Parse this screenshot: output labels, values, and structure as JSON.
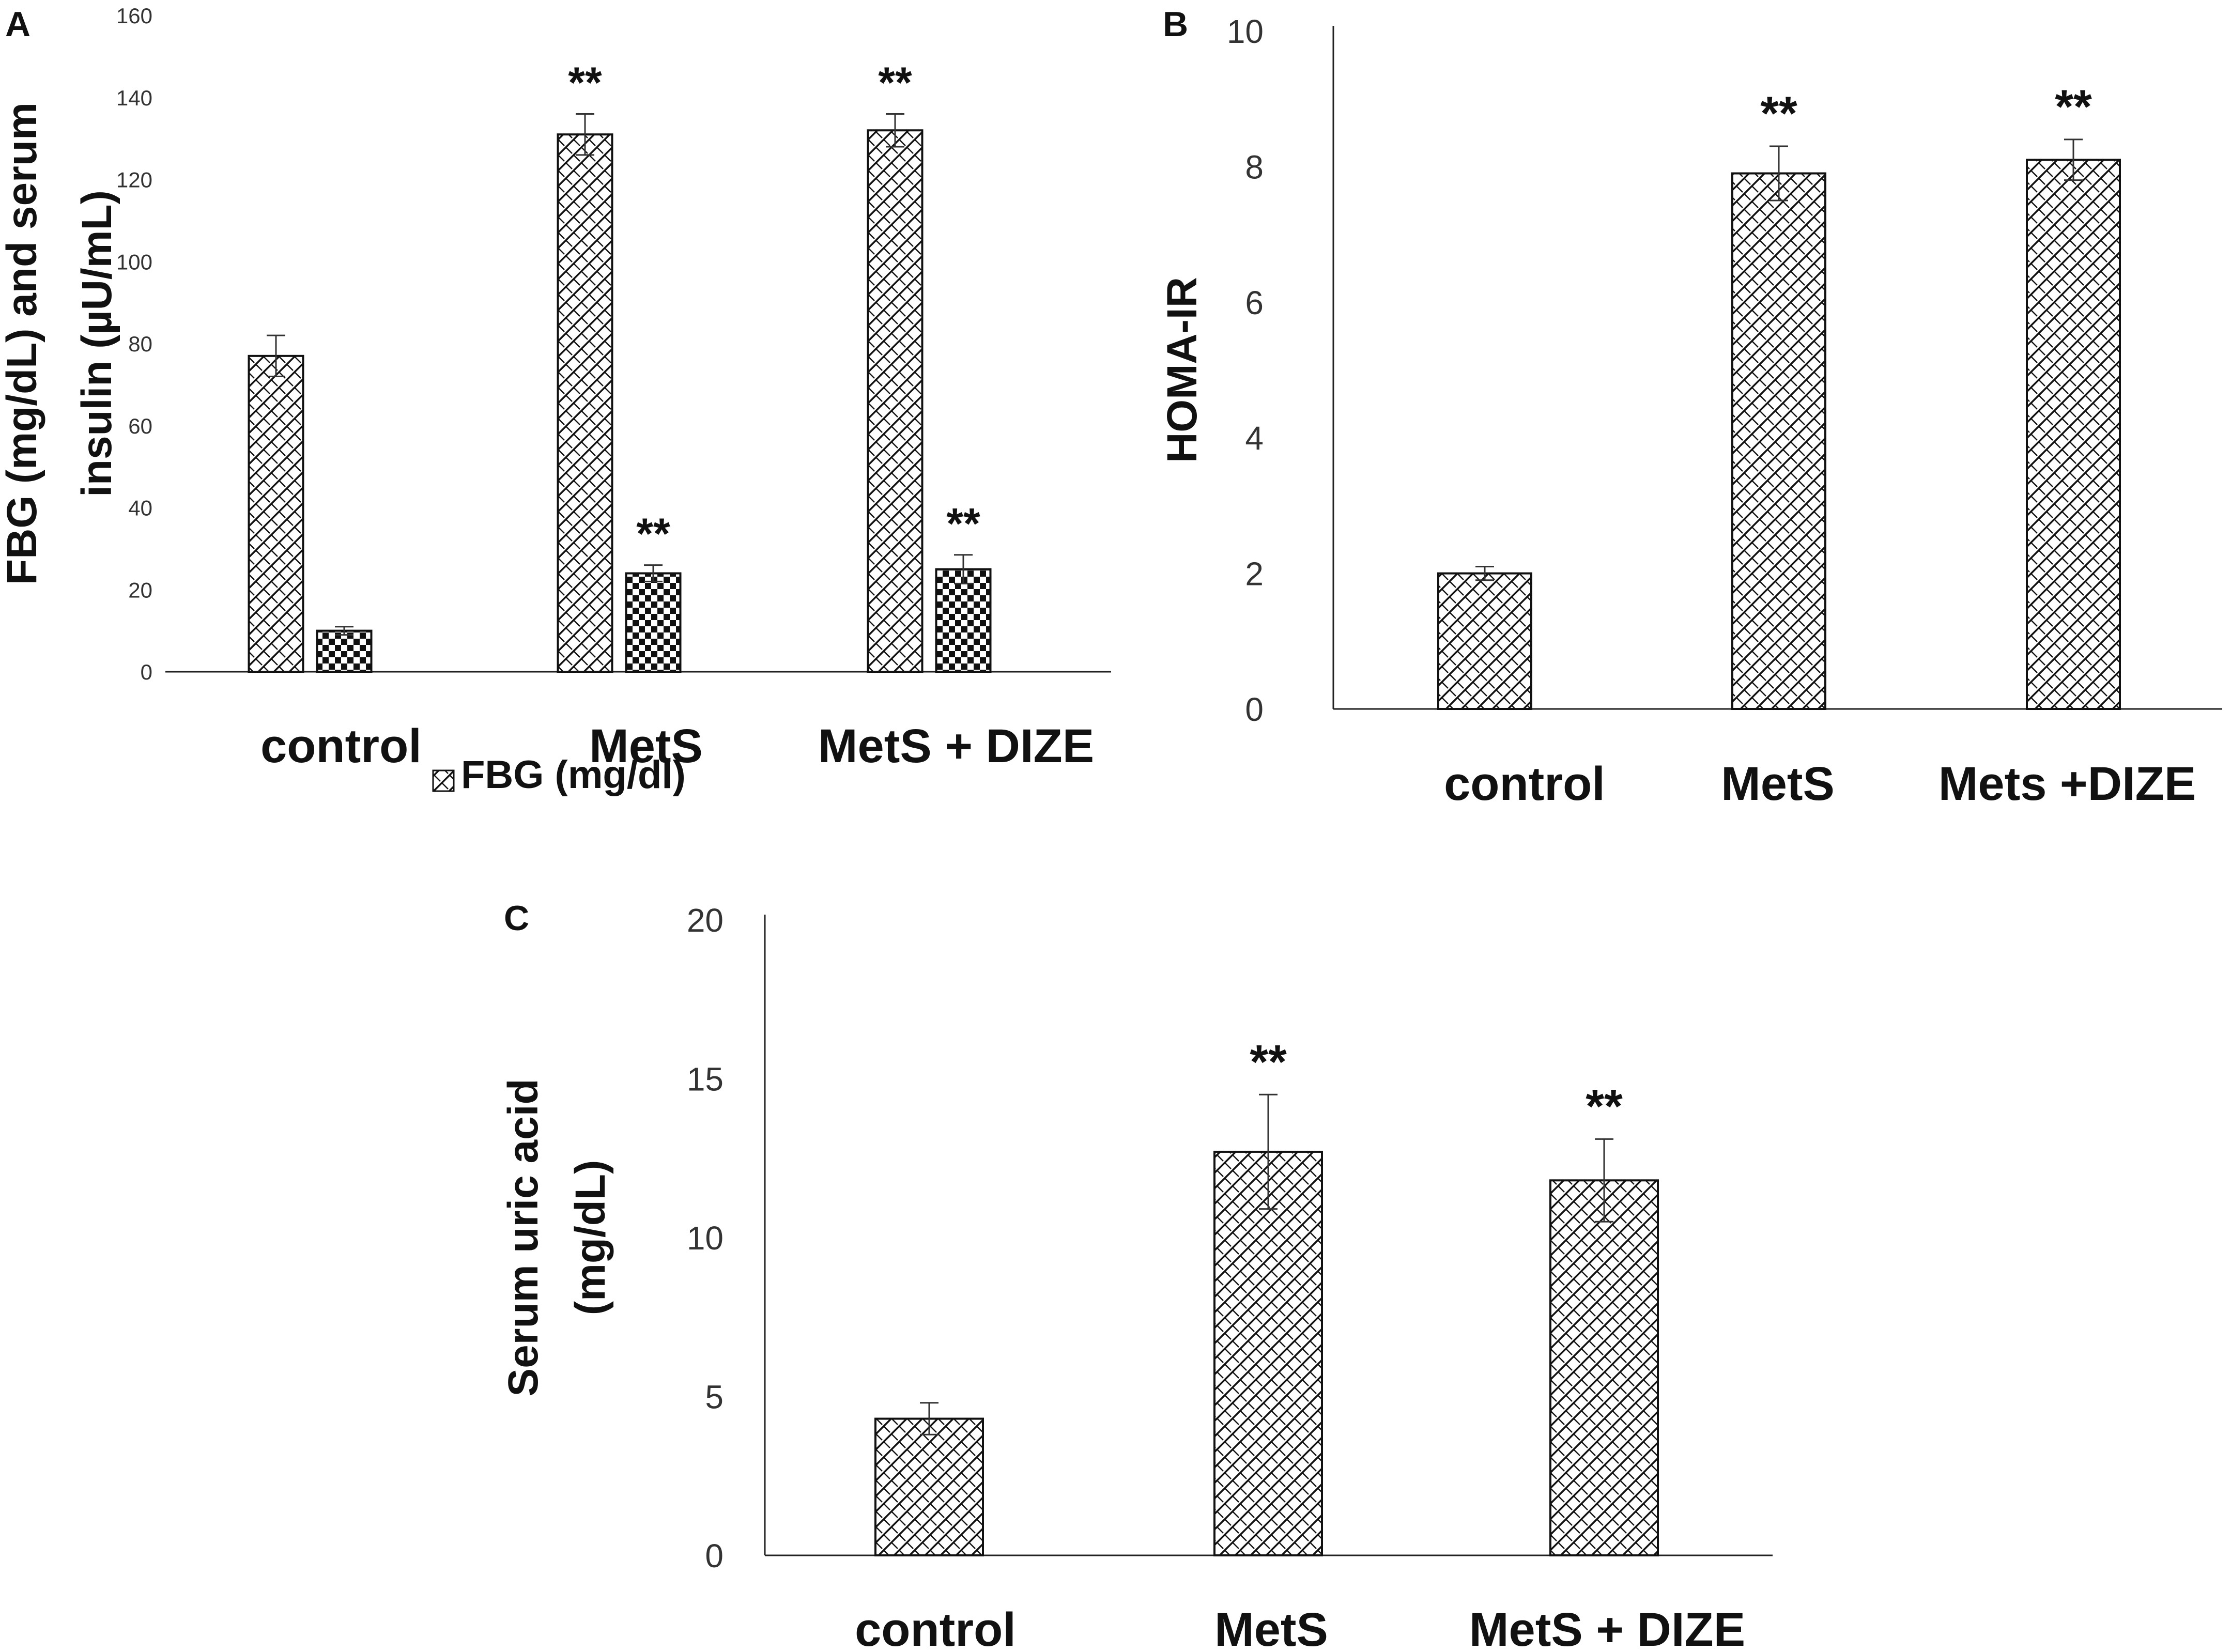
{
  "figure": {
    "panels": [
      "A",
      "B",
      "C"
    ]
  },
  "chart_data": [
    {
      "type": "bar",
      "panel": "A",
      "title": "",
      "ylabel_lines": [
        "FBG (mg/dL) and serum",
        "insulin (µU/mL)"
      ],
      "xlabel": "",
      "categories": [
        "control",
        "MetS",
        "MetS + DIZE"
      ],
      "ylim": [
        0,
        160
      ],
      "yticks": [
        0,
        20,
        40,
        60,
        80,
        100,
        120,
        140,
        160
      ],
      "legend": {
        "entries": [
          "FBG (mg/dl)"
        ],
        "position": "bottom-center"
      },
      "series": [
        {
          "name": "FBG (mg/dl)",
          "pattern": "hatch",
          "values": [
            77,
            131,
            132
          ],
          "errors": [
            5,
            5,
            4
          ],
          "stars": [
            "",
            "**",
            "**"
          ]
        },
        {
          "name": "Serum insulin (µU/mL)",
          "pattern": "checker",
          "values": [
            10,
            24,
            25
          ],
          "errors": [
            1,
            2,
            3.5
          ],
          "stars": [
            "",
            "**",
            "**"
          ]
        }
      ]
    },
    {
      "type": "bar",
      "panel": "B",
      "title": "",
      "ylabel_lines": [
        "HOMA-IR"
      ],
      "xlabel": "",
      "categories": [
        "control",
        "MetS",
        "Mets +DIZE"
      ],
      "ylim": [
        0,
        10
      ],
      "yticks": [
        0,
        2,
        4,
        6,
        8,
        10
      ],
      "series": [
        {
          "name": "HOMA-IR",
          "pattern": "hatch",
          "values": [
            2.0,
            7.9,
            8.1
          ],
          "errors": [
            0.1,
            0.4,
            0.3
          ],
          "stars": [
            "",
            "**",
            "**"
          ]
        }
      ]
    },
    {
      "type": "bar",
      "panel": "C",
      "title": "",
      "ylabel_lines": [
        "Serum uric acid",
        "(mg/dL)"
      ],
      "xlabel": "",
      "categories": [
        "control",
        "MetS",
        "MetS + DIZE"
      ],
      "ylim": [
        0,
        20
      ],
      "yticks": [
        0,
        5,
        10,
        15,
        20
      ],
      "series": [
        {
          "name": "Serum uric acid",
          "pattern": "hatch",
          "values": [
            4.3,
            12.7,
            11.8
          ],
          "errors": [
            0.5,
            1.8,
            1.3
          ],
          "stars": [
            "",
            "**",
            "**"
          ]
        }
      ]
    }
  ]
}
